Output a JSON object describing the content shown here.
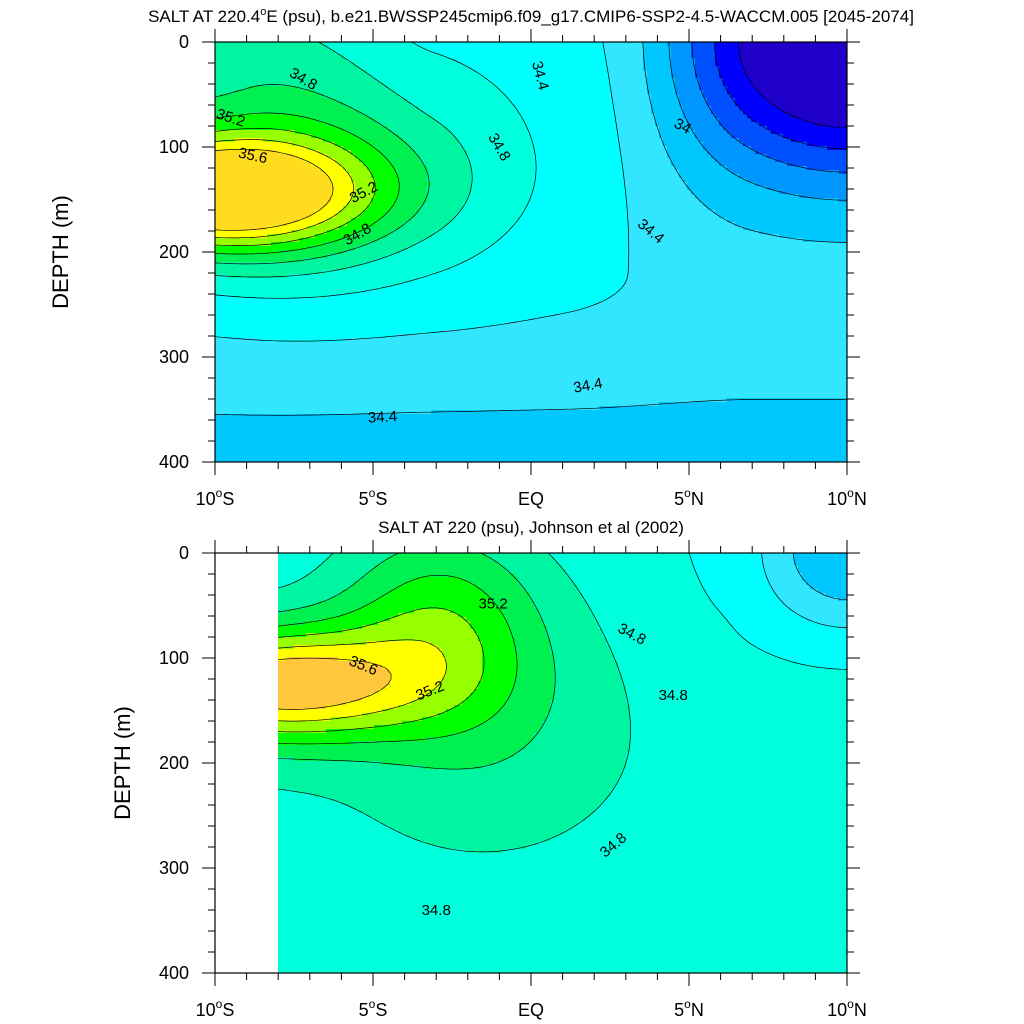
{
  "chart_data": [
    {
      "type": "heatmap",
      "title": "SALT AT 220.4°E (psu), b.e21.BWSSP245cmip6.f09_g17.CMIP6-SSP2-4.5-WACCM.005 [2045-2074]",
      "title_parts": {
        "pre": "SALT AT 220.4",
        "sup": "o",
        "post": "E (psu), b.e21.BWSSP245cmip6.f09_g17.CMIP6-SSP2-4.5-WACCM.005 [2045-2074]"
      },
      "ylabel": "DEPTH (m)",
      "xlim": [
        -10,
        10
      ],
      "ylim": [
        0,
        400
      ],
      "y_inverted": true,
      "x_ticks": [
        {
          "value": -10,
          "pre": "10",
          "sup": "o",
          "post": "S"
        },
        {
          "value": -5,
          "pre": "5",
          "sup": "o",
          "post": "S"
        },
        {
          "value": 0,
          "pre": "EQ",
          "sup": "",
          "post": ""
        },
        {
          "value": 5,
          "pre": "5",
          "sup": "o",
          "post": "N"
        },
        {
          "value": 10,
          "pre": "10",
          "sup": "o",
          "post": "N"
        }
      ],
      "y_ticks": [
        "0",
        "100",
        "200",
        "300",
        "400"
      ],
      "y_tick_values": [
        0,
        100,
        200,
        300,
        400
      ],
      "data_x_range": [
        -10,
        10
      ],
      "contour_interval": 0.2,
      "fill_levels": [
        {
          "value": 33.4,
          "color": "#1e00c8"
        },
        {
          "value": 33.6,
          "color": "#0000ff"
        },
        {
          "value": 33.8,
          "color": "#0050ff"
        },
        {
          "value": 34.0,
          "color": "#0096ff"
        },
        {
          "value": 34.2,
          "color": "#00c8ff"
        },
        {
          "value": 34.4,
          "color": "#32e6ff"
        },
        {
          "value": 34.6,
          "color": "#00ffff"
        },
        {
          "value": 34.8,
          "color": "#00ffdc"
        },
        {
          "value": 35.0,
          "color": "#00f5a0"
        },
        {
          "value": 35.2,
          "color": "#00f050"
        },
        {
          "value": 35.4,
          "color": "#00ff00"
        },
        {
          "value": 35.6,
          "color": "#96ff00"
        },
        {
          "value": 35.8,
          "color": "#ffff00"
        },
        {
          "value": 36.0,
          "color": "#ffdc1e"
        }
      ],
      "contour_labels": [
        {
          "text": "34.8",
          "x": -7.2,
          "y": 35,
          "angle": 30
        },
        {
          "text": "35.2",
          "x": -9.5,
          "y": 72,
          "angle": 18
        },
        {
          "text": "35.6",
          "x": -8.8,
          "y": 108,
          "angle": 12
        },
        {
          "text": "35.2",
          "x": -5.3,
          "y": 143,
          "angle": -28
        },
        {
          "text": "34.8",
          "x": -5.5,
          "y": 183,
          "angle": -30
        },
        {
          "text": "34.8",
          "x": -1.0,
          "y": 100,
          "angle": 60
        },
        {
          "text": "34.4",
          "x": 0.3,
          "y": 32,
          "angle": 75
        },
        {
          "text": "34",
          "x": 4.8,
          "y": 80,
          "angle": 28
        },
        {
          "text": "34.4",
          "x": 3.8,
          "y": 180,
          "angle": 40
        },
        {
          "text": "34.4",
          "x": 1.8,
          "y": 327,
          "angle": -10
        },
        {
          "text": "34.4",
          "x": -4.7,
          "y": 357,
          "angle": -3
        }
      ],
      "grid": false,
      "legend": "none"
    },
    {
      "type": "heatmap",
      "title": "SALT AT 220 (psu), Johnson et al (2002)",
      "ylabel": "DEPTH (m)",
      "xlim": [
        -10,
        10
      ],
      "ylim": [
        0,
        400
      ],
      "y_inverted": true,
      "x_ticks": [
        {
          "value": -10,
          "pre": "10",
          "sup": "o",
          "post": "S"
        },
        {
          "value": -5,
          "pre": "5",
          "sup": "o",
          "post": "S"
        },
        {
          "value": 0,
          "pre": "EQ",
          "sup": "",
          "post": ""
        },
        {
          "value": 5,
          "pre": "5",
          "sup": "o",
          "post": "N"
        },
        {
          "value": 10,
          "pre": "10",
          "sup": "o",
          "post": "N"
        }
      ],
      "y_ticks": [
        "0",
        "100",
        "200",
        "300",
        "400"
      ],
      "y_tick_values": [
        0,
        100,
        200,
        300,
        400
      ],
      "data_x_range": [
        -8,
        10
      ],
      "contour_interval": 0.2,
      "fill_levels": [
        {
          "value": 34.2,
          "color": "#00c8ff"
        },
        {
          "value": 34.4,
          "color": "#32e6ff"
        },
        {
          "value": 34.6,
          "color": "#00ffff"
        },
        {
          "value": 34.8,
          "color": "#00ffdc"
        },
        {
          "value": 35.0,
          "color": "#00f5a0"
        },
        {
          "value": 35.2,
          "color": "#00f050"
        },
        {
          "value": 35.4,
          "color": "#00ff00"
        },
        {
          "value": 35.6,
          "color": "#96ff00"
        },
        {
          "value": 35.8,
          "color": "#ffff00"
        },
        {
          "value": 36.0,
          "color": "#ffc83c"
        }
      ],
      "contour_labels": [
        {
          "text": "35.2",
          "x": -1.2,
          "y": 48,
          "angle": 0
        },
        {
          "text": "35.6",
          "x": -5.3,
          "y": 107,
          "angle": 22
        },
        {
          "text": "35.2",
          "x": -3.2,
          "y": 131,
          "angle": -22
        },
        {
          "text": "34.8",
          "x": 3.2,
          "y": 77,
          "angle": 28
        },
        {
          "text": "34.8",
          "x": 4.5,
          "y": 135,
          "angle": 0
        },
        {
          "text": "34.8",
          "x": 2.6,
          "y": 278,
          "angle": -40
        },
        {
          "text": "34.8",
          "x": -3.0,
          "y": 340,
          "angle": 0
        }
      ],
      "grid": false,
      "legend": "none"
    }
  ]
}
